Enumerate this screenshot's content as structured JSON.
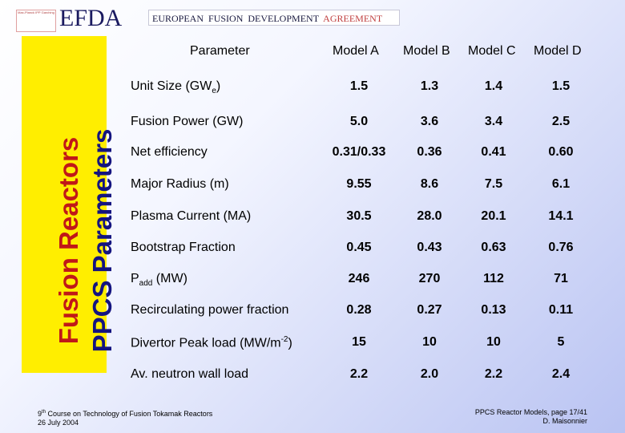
{
  "header": {
    "logo_text": "Max-Planck IPP Garching",
    "brand": "EFDA",
    "agreement_words": [
      "EUROPEAN",
      "FUSION",
      "DEVELOPMENT",
      "AGREEMENT"
    ]
  },
  "sidebar": {
    "line1": "Fusion Reactors",
    "line2": "PPCS Parameters",
    "bg_color": "#ffee00",
    "line1_color": "#c01818",
    "line2_color": "#141480"
  },
  "table": {
    "headers": [
      "Parameter",
      "Model A",
      "Model B",
      "Model C",
      "Model D"
    ],
    "rows": [
      {
        "label": "Unit Size (GW",
        "sub": "e",
        "suffix": ")",
        "values": [
          "1.5",
          "1.3",
          "1.4",
          "1.5"
        ]
      },
      {
        "label": "Fusion Power (GW)",
        "values": [
          "5.0",
          "3.6",
          "3.4",
          "2.5"
        ]
      },
      {
        "label": "Net efficiency",
        "values": [
          "0.31/0.33",
          "0.36",
          "0.41",
          "0.60"
        ]
      },
      {
        "label": "Major Radius (m)",
        "values": [
          "9.55",
          "8.6",
          "7.5",
          "6.1"
        ]
      },
      {
        "label": "Plasma Current (MA)",
        "values": [
          "30.5",
          "28.0",
          "20.1",
          "14.1"
        ]
      },
      {
        "label": "Bootstrap Fraction",
        "values": [
          "0.45",
          "0.43",
          "0.63",
          "0.76"
        ]
      },
      {
        "label": "P",
        "sub": "add",
        "suffix": " (MW)",
        "values": [
          "246",
          "270",
          "112",
          "71"
        ]
      },
      {
        "label": "Recirculating power fraction",
        "values": [
          "0.28",
          "0.27",
          "0.13",
          "0.11"
        ]
      },
      {
        "label": "Divertor Peak load (MW/m",
        "sup": "-2",
        "suffix": ")",
        "values": [
          "15",
          "10",
          "10",
          "5"
        ]
      },
      {
        "label": "Av. neutron wall load",
        "values": [
          "2.2",
          "2.0",
          "2.2",
          "2.4"
        ]
      }
    ]
  },
  "footer": {
    "course_num": "9",
    "course_ord": "th",
    "course_rest": " Course on Technology of Fusion Tokamak Reactors",
    "date": "26 July 2004",
    "page": "PPCS Reactor Models, page 17/41",
    "author": "D. Maisonnier"
  }
}
